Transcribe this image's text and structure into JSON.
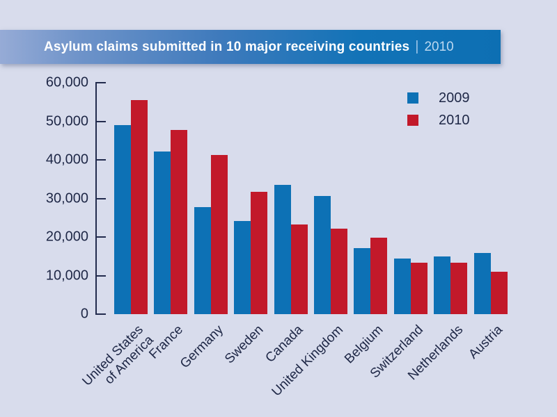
{
  "banner": {
    "title": "Asylum claims submitted in 10 major receiving countries",
    "separator": "|",
    "year": "2010"
  },
  "colors": {
    "background": "#d8dcec",
    "banner_blue": "#0d6fb3",
    "axis": "#222b4d",
    "text": "#1e2746",
    "series_2009": "#0d71b5",
    "series_2010": "#c2192a"
  },
  "chart_data": {
    "type": "bar",
    "title": "Asylum claims submitted in 10 major receiving countries | 2010",
    "xlabel": "",
    "ylabel": "",
    "ylim": [
      0,
      60000
    ],
    "grid": false,
    "legend_position": "top-right",
    "yticks": [
      {
        "value": 0,
        "label": "0"
      },
      {
        "value": 10000,
        "label": "10,000"
      },
      {
        "value": 20000,
        "label": "20,000"
      },
      {
        "value": 30000,
        "label": "30,000"
      },
      {
        "value": 40000,
        "label": "40,000"
      },
      {
        "value": 50000,
        "label": "50,000"
      },
      {
        "value": 60000,
        "label": "60,000"
      }
    ],
    "categories": [
      {
        "label": "United States of America",
        "lines": [
          "United States",
          "of America"
        ]
      },
      {
        "label": "France",
        "lines": [
          "France"
        ]
      },
      {
        "label": "Germany",
        "lines": [
          "Germany"
        ]
      },
      {
        "label": "Sweden",
        "lines": [
          "Sweden"
        ]
      },
      {
        "label": "Canada",
        "lines": [
          "Canada"
        ]
      },
      {
        "label": "United Kingdom",
        "lines": [
          "United Kingdom"
        ]
      },
      {
        "label": "Belgium",
        "lines": [
          "Belgium"
        ]
      },
      {
        "label": "Switzerland",
        "lines": [
          "Switzerland"
        ]
      },
      {
        "label": "Netherlands",
        "lines": [
          "Netherlands"
        ]
      },
      {
        "label": "Austria",
        "lines": [
          "Austria"
        ]
      }
    ],
    "series": [
      {
        "name": "2009",
        "color": "#0d71b5",
        "values": [
          49000,
          42100,
          27700,
          24200,
          33500,
          30700,
          17200,
          14400,
          14900,
          15800
        ]
      },
      {
        "name": "2010",
        "color": "#c2192a",
        "values": [
          55500,
          47800,
          41300,
          31800,
          23200,
          22100,
          19900,
          13400,
          13300,
          11000
        ]
      }
    ]
  }
}
